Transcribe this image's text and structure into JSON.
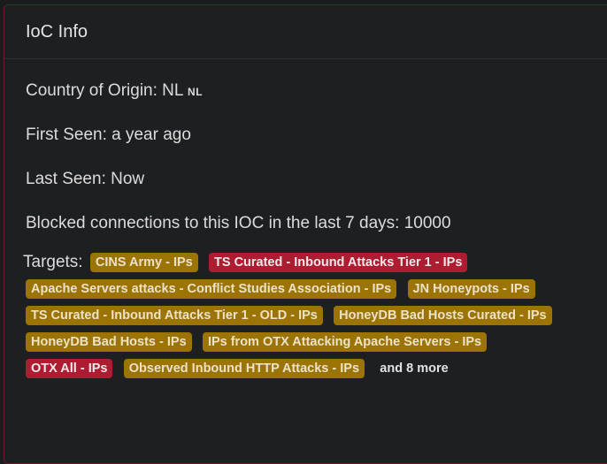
{
  "card": {
    "title": "IoC Info",
    "country_label": "Country of Origin: NL",
    "country_code": "NL",
    "first_seen": "First Seen: a year ago",
    "last_seen": "Last Seen: Now",
    "blocked": "Blocked connections to this IOC in the last 7 days: 10000",
    "targets_label": "Targets:",
    "targets": [
      {
        "label": "CINS Army - IPs",
        "color": "#9c7406"
      },
      {
        "label": "TS Curated - Inbound Attacks Tier 1 - IPs",
        "color": "#ad1c30"
      },
      {
        "label": "Apache Servers attacks - Conflict Studies Association - IPs",
        "color": "#9c7406"
      },
      {
        "label": "JN Honeypots - IPs",
        "color": "#9c7406"
      },
      {
        "label": "TS Curated - Inbound Attacks Tier 1 - OLD - IPs",
        "color": "#9c7406"
      },
      {
        "label": "HoneyDB Bad Hosts Curated - IPs",
        "color": "#9c7406"
      },
      {
        "label": "HoneyDB Bad Hosts - IPs",
        "color": "#9c7406"
      },
      {
        "label": "IPs from OTX Attacking Apache Servers - IPs",
        "color": "#9c7406"
      },
      {
        "label": "OTX All - IPs",
        "color": "#ad1c30"
      },
      {
        "label": "Observed Inbound HTTP Attacks - IPs",
        "color": "#9c7406"
      }
    ],
    "more": "and 8 more"
  }
}
